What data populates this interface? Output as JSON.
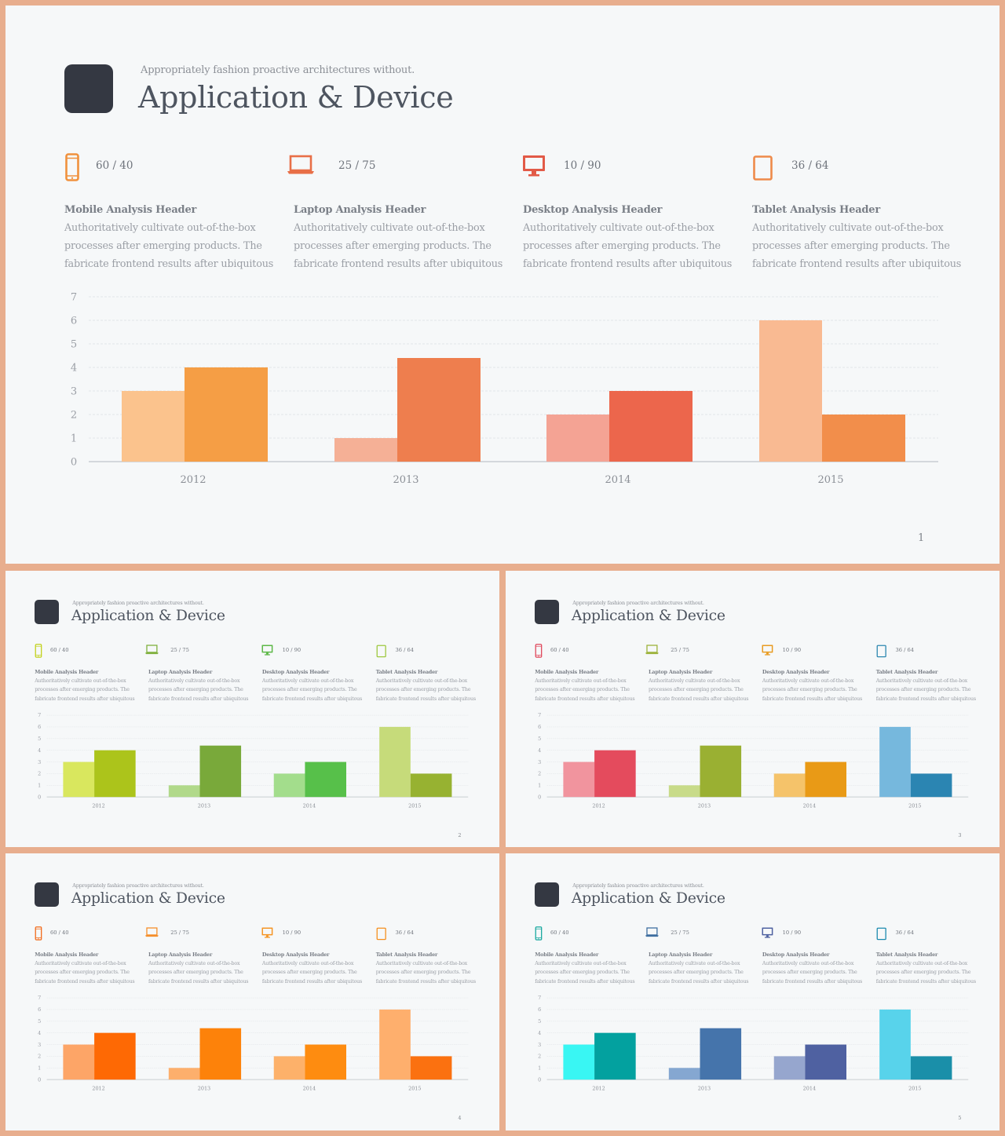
{
  "subtitle": "Appropriately fashion proactive architectures without.",
  "title": "Application & Device",
  "devices": [
    {
      "icon": "mobile-phone-icon",
      "ratio": "60 / 40",
      "header": "Mobile Analysis Header",
      "lines": [
        "Authoritatively cultivate out-of-the-box",
        "processes after emerging products. The",
        "fabricate frontend results after ubiquitous"
      ]
    },
    {
      "icon": "laptop-icon",
      "ratio": "25 / 75",
      "header": "Laptop Analysis Header",
      "lines": [
        "Authoritatively cultivate out-of-the-box",
        "processes after emerging products. The",
        "fabricate frontend results after ubiquitous"
      ]
    },
    {
      "icon": "desktop-monitor-icon",
      "ratio": "10 / 90",
      "header": "Desktop Analysis Header",
      "lines": [
        "Authoritatively cultivate out-of-the-box",
        "processes after emerging products. The",
        "fabricate frontend results after ubiquitous"
      ]
    },
    {
      "icon": "tablet-icon",
      "ratio": "36 / 64",
      "header": "Tablet Analysis Header",
      "lines": [
        "Authoritatively cultivate out-of-the-box",
        "processes after emerging products. The",
        "fabricate frontend results after ubiquitous"
      ]
    }
  ],
  "chart_data": {
    "type": "bar",
    "categories": [
      "2012",
      "2013",
      "2014",
      "2015"
    ],
    "series": [
      {
        "values": [
          3,
          1,
          2,
          6
        ]
      },
      {
        "values": [
          4,
          4.4,
          3,
          2
        ]
      }
    ],
    "ylim": [
      0,
      7
    ],
    "yticks": [
      "0",
      "1",
      "2",
      "3",
      "4",
      "5",
      "6",
      "7"
    ],
    "grid": true
  },
  "slides": [
    {
      "page": "1",
      "icon_colors": [
        "#F0913D",
        "#E86F47",
        "#E25A47",
        "#EE8A4A"
      ],
      "bar_colors": [
        [
          "#FBC38D",
          "#F59E45"
        ],
        [
          "#F5B096",
          "#EE7E4E"
        ],
        [
          "#F4A394",
          "#EC664C"
        ],
        [
          "#F9BA92",
          "#F28E4B"
        ]
      ]
    },
    {
      "page": "2",
      "icon_colors": [
        "#C2D11C",
        "#7FB03D",
        "#5AB744",
        "#9DC83E"
      ],
      "bar_colors": [
        [
          "#D9E75E",
          "#ACC41B"
        ],
        [
          "#B1D98A",
          "#79A93A"
        ],
        [
          "#A3DD8C",
          "#57C04A"
        ],
        [
          "#C6DB7A",
          "#97B231"
        ]
      ]
    },
    {
      "page": "3",
      "icon_colors": [
        "#E0475B",
        "#9CB23A",
        "#E89A1E",
        "#2C87B0"
      ],
      "bar_colors": [
        [
          "#F1949E",
          "#E44B5D"
        ],
        [
          "#C8DB89",
          "#9AB032"
        ],
        [
          "#F5C36A",
          "#E99A16"
        ],
        [
          "#76B8DD",
          "#2B85B2"
        ]
      ]
    },
    {
      "page": "4",
      "icon_colors": [
        "#F26A1A",
        "#F58E2A",
        "#F59422",
        "#F58F1E"
      ],
      "bar_colors": [
        [
          "#FDA567",
          "#FE6904"
        ],
        [
          "#FDAF6C",
          "#FD820A"
        ],
        [
          "#FDB16A",
          "#FE8C10"
        ],
        [
          "#FEAF6D",
          "#FB7110"
        ]
      ]
    },
    {
      "page": "5",
      "icon_colors": [
        "#18A89F",
        "#3E6EA0",
        "#4C5F9F",
        "#1B8AAF"
      ],
      "bar_colors": [
        [
          "#39F6F3",
          "#03A19F"
        ],
        [
          "#85A7D1",
          "#4574AB"
        ],
        [
          "#96A6CE",
          "#4F61A1"
        ],
        [
          "#58D3EB",
          "#1A8FA9"
        ]
      ]
    }
  ]
}
